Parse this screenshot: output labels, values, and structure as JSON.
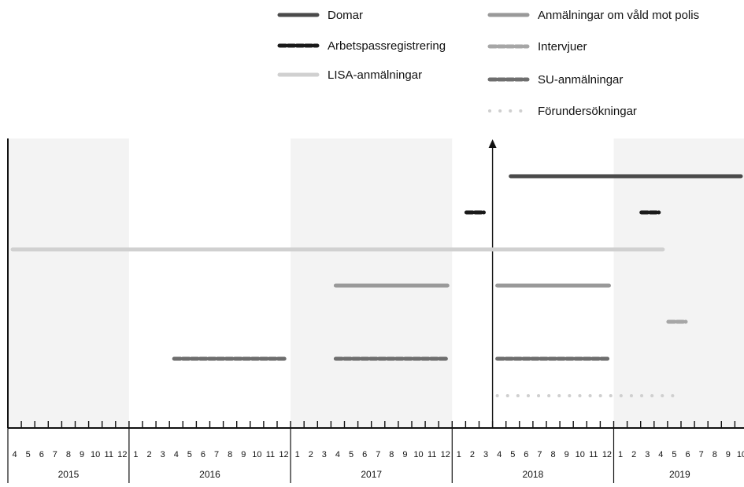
{
  "chart_data": {
    "type": "timeline",
    "title": "",
    "xlabel": "",
    "ylabel": "",
    "x_range": [
      "2015-04",
      "2019-10"
    ],
    "years": [
      "2015",
      "2016",
      "2017",
      "2018",
      "2019"
    ],
    "month_ticks": {
      "2015": [
        "4",
        "5",
        "6",
        "7",
        "8",
        "9",
        "10",
        "11",
        "12"
      ],
      "2016": [
        "1",
        "2",
        "3",
        "4",
        "5",
        "6",
        "7",
        "8",
        "9",
        "10",
        "11",
        "12"
      ],
      "2017": [
        "1",
        "2",
        "3",
        "4",
        "5",
        "6",
        "7",
        "8",
        "9",
        "10",
        "11",
        "12"
      ],
      "2018": [
        "1",
        "2",
        "3",
        "4",
        "5",
        "6",
        "7",
        "8",
        "9",
        "10",
        "11",
        "12"
      ],
      "2019": [
        "1",
        "2",
        "3",
        "4",
        "5",
        "6",
        "7",
        "8",
        "9",
        "10"
      ]
    },
    "marker": {
      "date": "2018-04",
      "arrow": true
    },
    "legend_placement": "top-right",
    "series": [
      {
        "name": "Domar",
        "style": "solid",
        "color": "#4a4a4a",
        "intervals": [
          [
            "2018-05",
            "2019-10"
          ]
        ]
      },
      {
        "name": "Arbetspassregistrering",
        "style": "dashed-dark",
        "color": "#1a1a1a",
        "intervals": [
          [
            "2018-02",
            "2018-02"
          ],
          [
            "2019-03",
            "2019-03"
          ]
        ]
      },
      {
        "name": "LISA-anmälningar",
        "style": "solid",
        "color": "#d0d0d0",
        "intervals": [
          [
            "2015-04",
            "2019-04"
          ]
        ]
      },
      {
        "name": "Anmälningar om våld mot polis",
        "style": "solid",
        "color": "#999999",
        "intervals": [
          [
            "2017-04",
            "2017-12"
          ],
          [
            "2018-04",
            "2018-12"
          ]
        ]
      },
      {
        "name": "Intervjuer",
        "style": "dashed",
        "color": "#a6a6a6",
        "intervals": [
          [
            "2019-05",
            "2019-05"
          ]
        ]
      },
      {
        "name": "SU-anmälningar",
        "style": "dashed",
        "color": "#6e6e6e",
        "intervals": [
          [
            "2016-04",
            "2016-12"
          ],
          [
            "2017-04",
            "2017-12"
          ],
          [
            "2018-04",
            "2018-12"
          ]
        ]
      },
      {
        "name": "Förundersökningar",
        "style": "dotted",
        "color": "#cfcfcf",
        "intervals": [
          [
            "2018-04",
            "2019-05"
          ]
        ]
      }
    ]
  }
}
